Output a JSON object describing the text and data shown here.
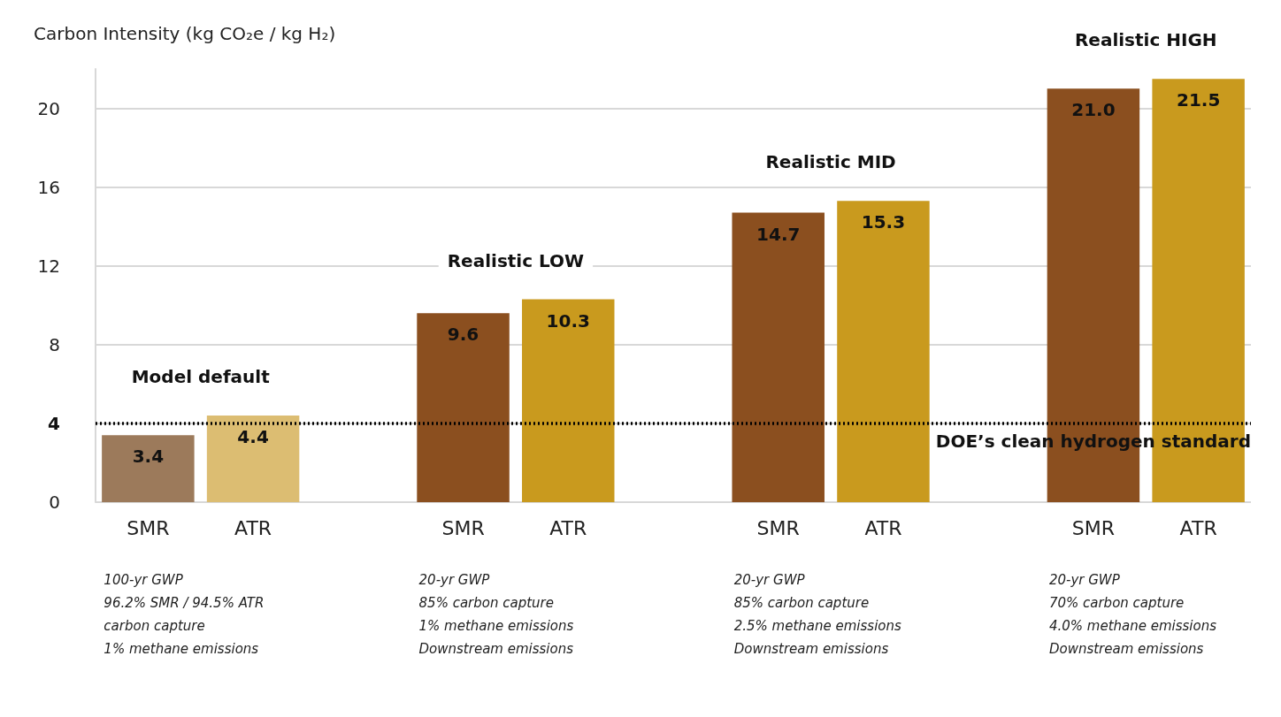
{
  "chart_data": {
    "type": "bar",
    "ylabel": "Carbon Intensity (kg CO₂e / kg H₂)",
    "categories": [
      "SMR",
      "ATR",
      null,
      "SMR",
      "ATR",
      null,
      "SMR",
      "ATR",
      null,
      "SMR",
      "ATR"
    ],
    "values": [
      3.4,
      4.4,
      null,
      9.6,
      10.3,
      null,
      14.7,
      15.3,
      null,
      21.0,
      21.5
    ],
    "colors": [
      "#9c7a5b",
      "#dcbd72",
      null,
      "#8b4f1f",
      "#c99a1e",
      null,
      "#8b4f1f",
      "#c99a1e",
      null,
      "#8b4f1f",
      "#c99a1e"
    ],
    "value_labels": [
      "3.4",
      "4.4",
      null,
      "9.6",
      "10.3",
      null,
      "14.7",
      "15.3",
      null,
      "21.0",
      "21.5"
    ],
    "ylim": [
      0,
      22
    ],
    "yticks": [
      0,
      4,
      8,
      12,
      16,
      20
    ],
    "grid": "y",
    "ref_lines": [
      {
        "axis": "y",
        "value": 4,
        "label": "DOE’s clean hydrogen standard",
        "line_style": "dotted",
        "color": "#000000"
      }
    ],
    "annotations": [
      "Model default",
      "Realistic LOW",
      "Realistic MID",
      "Realistic HIGH",
      "100-yr GWP\n96.2% SMR / 94.5% ATR\ncarbon capture\n1% methane emissions",
      "20-yr GWP\n85% carbon capture\n1% methane emissions\nDownstream emissions",
      "20-yr GWP\n85% carbon capture\n2.5% methane emissions\nDownstream emissions",
      "20-yr GWP\n70% carbon capture\n4.0% methane emissions\nDownstream emissions"
    ]
  }
}
